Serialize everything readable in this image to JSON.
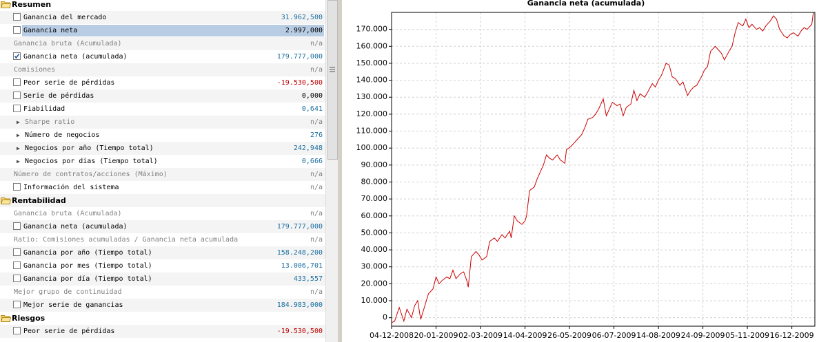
{
  "panel": {
    "sections": [
      {
        "title": "Resumen",
        "rows": [
          {
            "label": "Ganancia del mercado",
            "value": "31.962,500",
            "control": "checkbox",
            "tone": "blue"
          },
          {
            "label": "Ganancia neta",
            "value": "2.997,000",
            "control": "checkbox",
            "tone": "black",
            "selected": true
          },
          {
            "label": "Ganancia bruta (Acumulada)",
            "value": "n/a",
            "control": "none",
            "tone": "gray"
          },
          {
            "label": "Ganancia neta (acumulada)",
            "value": "179.777,000",
            "control": "checked",
            "tone": "blue"
          },
          {
            "label": "Comisiones",
            "value": "n/a",
            "control": "none",
            "tone": "gray"
          },
          {
            "label": "Peor serie de pérdidas",
            "value": "-19.530,500",
            "control": "checkbox",
            "tone": "red"
          },
          {
            "label": "Serie de pérdidas",
            "value": "0,000",
            "control": "checkbox",
            "tone": "black"
          },
          {
            "label": "Fiabilidad",
            "value": "0,641",
            "control": "checkbox",
            "tone": "blue"
          },
          {
            "label": "Sharpe ratio",
            "value": "n/a",
            "control": "arrow",
            "tone": "gray"
          },
          {
            "label": "Número de negocios",
            "value": "276",
            "control": "arrow",
            "tone": "blue"
          },
          {
            "label": "Negocios por año (Tiempo total)",
            "value": "242,948",
            "control": "arrow",
            "tone": "blue"
          },
          {
            "label": "Negocios por días (Tiempo total)",
            "value": "0,666",
            "control": "arrow",
            "tone": "blue"
          },
          {
            "label": "Número de contratos/acciones (Máximo)",
            "value": "n/a",
            "control": "none",
            "tone": "gray"
          },
          {
            "label": "Información del sistema",
            "value": "n/a",
            "control": "checkbox",
            "tone": "gray"
          }
        ]
      },
      {
        "title": "Rentabilidad",
        "rows": [
          {
            "label": "Ganancia bruta (Acumulada)",
            "value": "n/a",
            "control": "none",
            "tone": "gray"
          },
          {
            "label": "Ganancia neta (acumulada)",
            "value": "179.777,000",
            "control": "checkbox",
            "tone": "blue"
          },
          {
            "label": "Ratio: Comisiones acumuladas / Ganancia neta acumulada",
            "value": "n/a",
            "control": "none",
            "tone": "gray"
          },
          {
            "label": "Ganancia por año (Tiempo total)",
            "value": "158.248,200",
            "control": "checkbox",
            "tone": "blue"
          },
          {
            "label": "Ganancia por mes (Tiempo total)",
            "value": "13.006,701",
            "control": "checkbox",
            "tone": "blue"
          },
          {
            "label": "Ganancia por día (Tiempo total)",
            "value": "433,557",
            "control": "checkbox",
            "tone": "blue"
          },
          {
            "label": "Mejor grupo de continuidad",
            "value": "n/a",
            "control": "none",
            "tone": "gray"
          },
          {
            "label": "Mejor serie de ganancias",
            "value": "184.983,000",
            "control": "checkbox",
            "tone": "blue"
          }
        ]
      },
      {
        "title": "Riesgos",
        "rows": [
          {
            "label": "Peor serie de pérdidas",
            "value": "-19.530,500",
            "control": "checkbox",
            "tone": "red"
          }
        ]
      }
    ]
  },
  "chart_data": {
    "type": "line",
    "title": "Ganancia neta (acumulada)",
    "color": "#cc0000",
    "grid": true,
    "x": [
      0,
      2,
      5,
      8,
      10,
      13,
      15,
      17,
      19,
      22,
      24,
      27,
      29,
      31,
      33,
      36,
      38,
      40,
      42,
      45,
      47,
      49,
      50,
      52,
      55,
      57,
      59,
      62,
      64,
      67,
      69,
      72,
      74,
      77,
      78,
      80,
      82,
      85,
      87,
      88,
      90,
      93,
      95,
      97,
      99,
      101,
      103,
      105,
      108,
      110,
      113,
      114,
      117,
      119,
      121,
      124,
      126,
      128,
      131,
      133,
      135,
      138,
      140,
      142,
      144,
      147,
      149,
      151,
      153,
      156,
      158,
      160,
      162,
      165,
      167,
      170,
      172,
      174,
      176,
      179,
      181,
      183,
      185,
      188,
      190,
      193,
      195,
      197,
      199,
      202,
      204,
      206,
      208,
      211,
      213,
      215,
      217,
      220,
      222,
      224,
      226,
      229,
      231,
      233,
      235,
      238,
      240,
      242,
      244,
      247,
      249,
      251,
      253,
      256,
      258,
      260,
      262,
      265,
      267,
      269,
      271,
      274,
      275
    ],
    "values": [
      -3000,
      -2000,
      6000,
      -2000,
      5000,
      0,
      7000,
      10000,
      -1000,
      8000,
      14000,
      17000,
      24000,
      20000,
      22000,
      24000,
      23000,
      28000,
      23000,
      26000,
      27000,
      22000,
      18000,
      36000,
      39000,
      37000,
      34000,
      36000,
      45000,
      47000,
      45000,
      49000,
      47000,
      51000,
      47000,
      60000,
      57000,
      55000,
      57000,
      60000,
      75000,
      77000,
      82000,
      86000,
      90000,
      96000,
      94000,
      93000,
      96000,
      93000,
      91000,
      99000,
      101000,
      103000,
      105000,
      108000,
      112000,
      117000,
      118000,
      120000,
      123000,
      129000,
      119000,
      123000,
      127000,
      125000,
      126000,
      119000,
      124000,
      126000,
      134000,
      128000,
      132000,
      130000,
      133000,
      138000,
      136000,
      140000,
      143000,
      150000,
      149000,
      142000,
      141000,
      137000,
      139000,
      131000,
      134000,
      136000,
      137000,
      142000,
      146000,
      148000,
      157000,
      160000,
      158000,
      156000,
      152000,
      157000,
      160000,
      168000,
      174000,
      172000,
      176000,
      171000,
      173000,
      170000,
      171000,
      169000,
      172000,
      175000,
      178000,
      176000,
      170000,
      166000,
      165000,
      167000,
      168000,
      166000,
      169000,
      171000,
      170000,
      173000,
      179777
    ],
    "xlim": [
      0,
      276
    ],
    "xticks": [
      {
        "value": 0,
        "label": "04-12-2008"
      },
      {
        "value": 29,
        "label": "20-01-2009"
      },
      {
        "value": 58,
        "label": "02-03-2009"
      },
      {
        "value": 87,
        "label": "14-04-2009"
      },
      {
        "value": 116,
        "label": "26-05-2009"
      },
      {
        "value": 145,
        "label": "06-07-2009"
      },
      {
        "value": 174,
        "label": "14-08-2009"
      },
      {
        "value": 203,
        "label": "24-09-2009"
      },
      {
        "value": 232,
        "label": "05-11-2009"
      },
      {
        "value": 261,
        "label": "16-12-2009"
      }
    ],
    "ylim": [
      -5000,
      180000
    ],
    "yticks": [
      0,
      {
        "value": 10000,
        "label": "10.000"
      },
      {
        "value": 20000,
        "label": "20.000"
      },
      {
        "value": 30000,
        "label": "30.000"
      },
      {
        "value": 40000,
        "label": "40.000"
      },
      {
        "value": 50000,
        "label": "50.000"
      },
      {
        "value": 60000,
        "label": "60.000"
      },
      {
        "value": 70000,
        "label": "70.000"
      },
      {
        "value": 80000,
        "label": "80.000"
      },
      {
        "value": 90000,
        "label": "90.000"
      },
      {
        "value": 100000,
        "label": "100.000"
      },
      {
        "value": 110000,
        "label": "110.000"
      },
      {
        "value": 120000,
        "label": "120.000"
      },
      {
        "value": 130000,
        "label": "130.000"
      },
      {
        "value": 140000,
        "label": "140.000"
      },
      {
        "value": 150000,
        "label": "150.000"
      },
      {
        "value": 160000,
        "label": "160.000"
      },
      {
        "value": 170000,
        "label": "170.000"
      }
    ]
  }
}
